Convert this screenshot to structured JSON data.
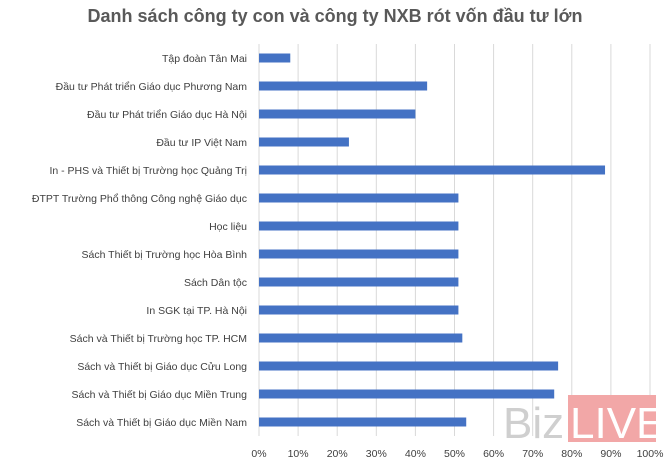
{
  "chart_data": {
    "type": "bar",
    "orientation": "horizontal",
    "title": "Danh sách công ty con và công ty NXB rót vốn đầu tư lớn",
    "categories": [
      "Tập đoàn Tân Mai",
      "Đầu tư Phát triển Giáo dục Phương Nam",
      "Đầu tư Phát triển Giáo dục Hà Nội",
      "Đầu tư IP Việt Nam",
      "In - PHS và Thiết bị Trường học Quảng Trị",
      "ĐTPT Trường Phổ thông Công nghệ Giáo dục",
      "Học liệu",
      "Sách Thiết bị Trường học Hòa Bình",
      "Sách Dân tộc",
      "In SGK tại TP. Hà Nội",
      "Sách và Thiết bị Trường học TP. HCM",
      "Sách và Thiết bị Giáo dục Cửu Long",
      "Sách và Thiết bị Giáo dục Miền Trung",
      "Sách và Thiết bị Giáo dục Miền Nam"
    ],
    "values": [
      8,
      43,
      40,
      23,
      88.5,
      51,
      51,
      51,
      51,
      51,
      52,
      76.5,
      75.5,
      53
    ],
    "xlim": [
      0,
      100
    ],
    "xticks": [
      "0%",
      "10%",
      "20%",
      "30%",
      "40%",
      "50%",
      "60%",
      "70%",
      "80%",
      "90%",
      "100%"
    ],
    "gridlines": true,
    "bar_color": "#4472c4"
  },
  "watermark": {
    "part1": "Biz",
    "part2": "LIVE",
    "color": "#f2a7a7"
  }
}
